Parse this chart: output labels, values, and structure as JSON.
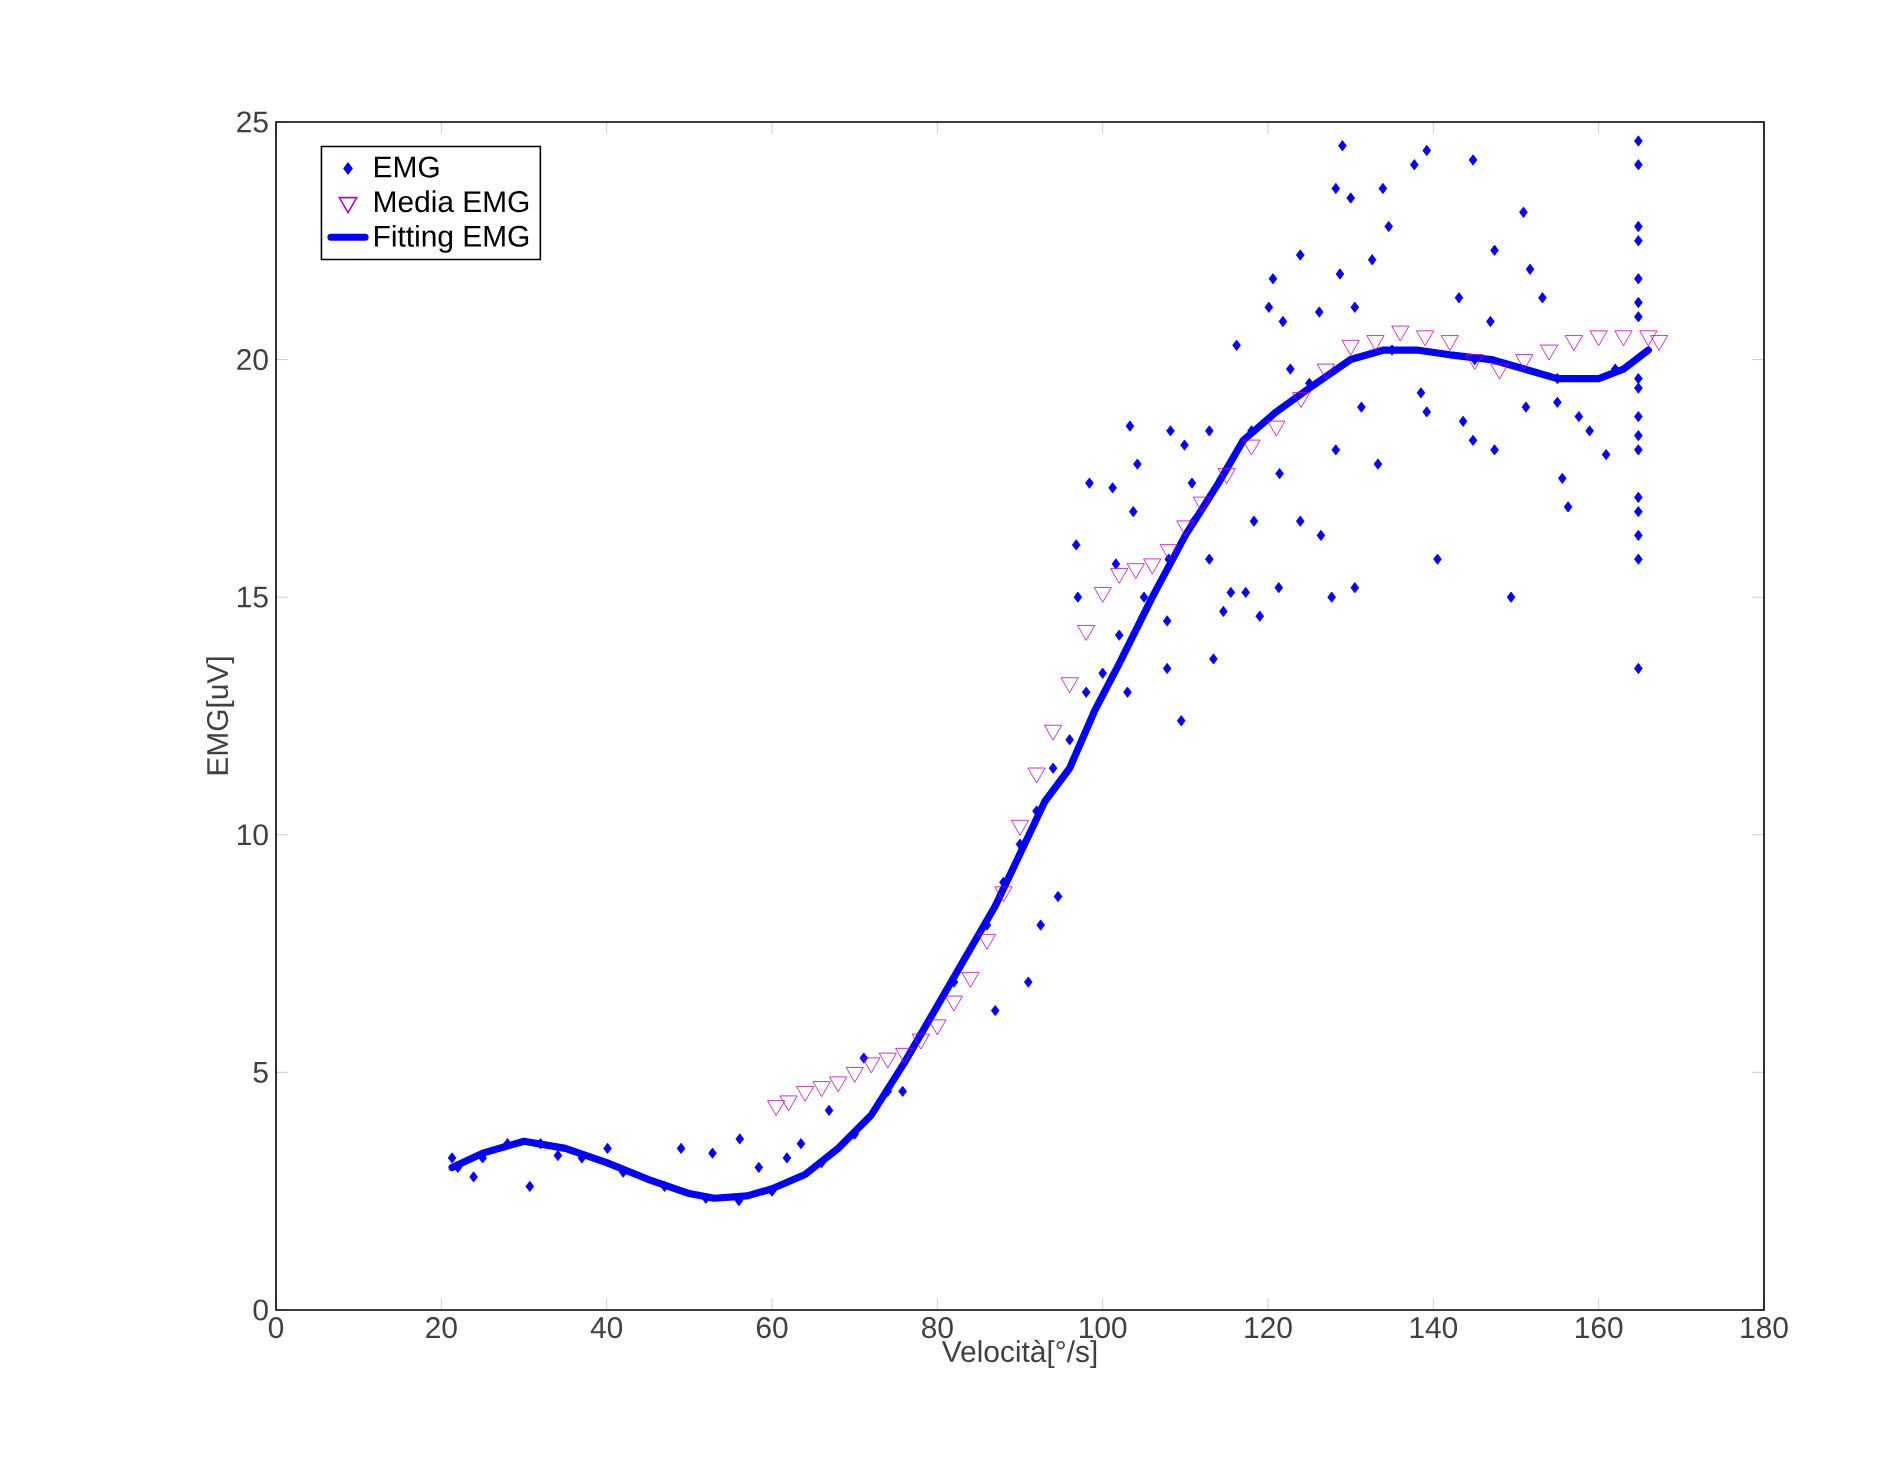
{
  "chart_data": {
    "type": "scatter",
    "xlabel": "Velocità[°/s]",
    "ylabel": "EMG[uV]",
    "xlim": [
      0,
      180
    ],
    "ylim": [
      0,
      25
    ],
    "xticks": [
      0,
      20,
      40,
      60,
      80,
      100,
      120,
      140,
      160,
      180
    ],
    "yticks": [
      0,
      5,
      10,
      15,
      20,
      25
    ],
    "grid": false,
    "legend": "top left",
    "series": [
      {
        "name": "EMG",
        "type": "scatter",
        "color": "#0000ff",
        "marker": "diamond",
        "x": [
          21.3,
          23.9,
          30.7,
          40.1,
          34.1,
          49.0,
          52.8,
          56.1,
          58.4,
          61.8,
          63.5,
          66.9,
          71.1,
          75.8,
          22,
          25,
          28,
          32,
          37,
          42,
          47,
          52,
          56,
          60,
          66,
          70,
          74,
          78,
          82,
          86,
          88,
          90,
          92,
          94,
          96,
          98,
          100,
          102,
          105,
          108,
          111,
          115,
          118,
          125,
          135,
          145,
          155,
          162,
          87.0,
          91.0,
          92.5,
          94.6,
          103.3,
          108.2,
          109.9,
          112.9,
          98.4,
          101.2,
          104.2,
          103.7,
          110.8,
          96.8,
          97.0,
          101.6,
          112.9,
          115.5,
          117.3,
          121.3,
          114.6,
          119.0,
          107.8,
          107.8,
          113.4,
          103.0,
          109.5,
          122.7,
          121.4,
          129.0,
          139.2,
          137.7,
          144.8,
          128.2,
          130.0,
          133.9,
          134.6,
          150.9,
          147.4,
          123.9,
          132.6,
          120.6,
          128.7,
          151.7,
          143.1,
          153.2,
          120.1,
          126.2,
          130.5,
          121.8,
          116.2,
          146.9,
          138.5,
          139.2,
          143.6,
          147.4,
          155.0,
          157.6,
          158.9,
          160.9,
          155.6,
          156.3,
          140.5,
          149.4,
          127.7,
          130.5,
          126.4,
          123.9,
          118.3,
          133.3,
          128.2,
          131.3,
          151.2,
          144.8,
          164.8,
          164.8,
          164.8,
          164.8,
          164.8,
          164.8,
          164.8,
          164.8,
          164.8,
          164.8,
          164.8,
          164.8,
          164.8,
          164.8,
          164.8,
          164.8,
          164.8
        ],
        "values": [
          3.2,
          2.8,
          2.6,
          3.4,
          3.25,
          3.4,
          3.3,
          3.6,
          3.0,
          3.2,
          3.5,
          4.2,
          5.3,
          4.6,
          3.0,
          3.2,
          3.5,
          3.5,
          3.2,
          2.9,
          2.6,
          2.35,
          2.3,
          2.5,
          3.1,
          3.7,
          4.6,
          5.8,
          6.9,
          8.1,
          9.0,
          9.8,
          10.5,
          11.4,
          12.0,
          13.0,
          13.4,
          14.2,
          15.0,
          15.8,
          16.6,
          17.7,
          18.5,
          19.5,
          20.2,
          20.0,
          19.6,
          19.8,
          6.3,
          6.9,
          8.1,
          8.7,
          18.6,
          18.5,
          18.2,
          18.5,
          17.4,
          17.3,
          17.8,
          16.8,
          17.4,
          16.1,
          15.0,
          15.7,
          15.8,
          15.1,
          15.1,
          15.2,
          14.7,
          14.6,
          14.5,
          13.5,
          13.7,
          13.0,
          12.4,
          19.8,
          17.6,
          24.5,
          24.4,
          24.1,
          24.2,
          23.6,
          23.4,
          23.6,
          22.8,
          23.1,
          22.3,
          22.2,
          22.1,
          21.7,
          21.8,
          21.9,
          21.3,
          21.3,
          21.1,
          21.0,
          21.1,
          20.8,
          20.3,
          20.8,
          19.3,
          18.9,
          18.7,
          18.1,
          19.1,
          18.8,
          18.5,
          18.0,
          17.5,
          16.9,
          15.8,
          15.0,
          15.0,
          15.2,
          16.3,
          16.6,
          16.6,
          17.8,
          18.1,
          19.0,
          19.0,
          18.3,
          24.6,
          24.1,
          22.8,
          22.5,
          21.7,
          21.2,
          20.9,
          19.6,
          19.4,
          18.8,
          18.4,
          18.1,
          17.1,
          16.8,
          16.3,
          15.8,
          13.5
        ]
      },
      {
        "name": "Media EMG",
        "type": "scatter",
        "color": "#bf00bf",
        "marker": "triangle",
        "x": [
          60.5,
          62,
          64,
          66,
          68,
          70,
          72,
          74,
          76,
          78,
          80,
          82,
          84,
          86,
          88,
          90,
          92,
          94,
          96,
          98,
          100,
          102,
          104,
          106,
          108,
          110,
          112,
          115,
          118,
          121,
          124,
          127,
          130,
          133,
          136,
          139,
          142,
          145,
          148,
          151,
          154,
          157,
          160,
          163,
          166,
          167.3
        ],
        "values": [
          4.3,
          4.4,
          4.6,
          4.7,
          4.8,
          5.0,
          5.2,
          5.3,
          5.4,
          5.7,
          6.0,
          6.5,
          7.0,
          7.8,
          8.8,
          10.2,
          11.3,
          12.2,
          13.2,
          14.3,
          15.1,
          15.5,
          15.6,
          15.7,
          16.0,
          16.5,
          17.0,
          17.6,
          18.2,
          18.6,
          19.2,
          19.8,
          20.3,
          20.4,
          20.6,
          20.5,
          20.4,
          20.0,
          19.8,
          20.0,
          20.2,
          20.4,
          20.5,
          20.5,
          20.5,
          20.4
        ]
      },
      {
        "name": "Fitting EMG",
        "type": "line",
        "color": "#0000ff",
        "marker": "none",
        "line_style": "solid",
        "x": [
          21.3,
          25,
          30,
          35,
          40,
          45,
          50,
          53,
          57,
          60,
          64,
          68,
          72,
          76,
          80,
          84,
          87,
          90,
          93,
          96,
          99,
          102,
          106,
          110,
          114,
          117,
          121,
          125,
          130,
          134,
          138,
          142,
          147,
          151,
          155,
          160,
          163,
          166
        ],
        "values": [
          3.0,
          3.3,
          3.55,
          3.4,
          3.1,
          2.75,
          2.45,
          2.35,
          2.4,
          2.55,
          2.85,
          3.4,
          4.1,
          5.2,
          6.4,
          7.6,
          8.5,
          9.6,
          10.7,
          11.4,
          12.6,
          13.6,
          15.0,
          16.3,
          17.4,
          18.3,
          18.9,
          19.4,
          20.0,
          20.2,
          20.2,
          20.1,
          20.0,
          19.8,
          19.6,
          19.6,
          19.8,
          20.2
        ]
      }
    ]
  }
}
